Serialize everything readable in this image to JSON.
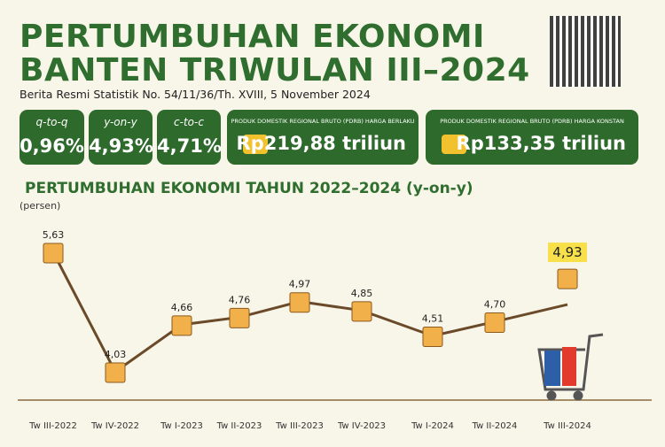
{
  "header": {
    "title_line1": "PERTUMBUHAN EKONOMI",
    "title_line2": "BANTEN TRIWULAN III–2024",
    "subtitle": "Berita Resmi Statistik No. 54/11/36/Th. XVIII, 5 November 2024"
  },
  "stats": [
    {
      "label": "q-to-q",
      "value": "0,96%"
    },
    {
      "label": "y-on-y",
      "value": "4,93%"
    },
    {
      "label": "c-to-c",
      "value": "4,71%"
    }
  ],
  "pdrb": [
    {
      "label": "PRODUK DOMESTIK REGIONAL BRUTO (PDRB) HARGA BERLAKU",
      "value": "Rp219,88 triliun"
    },
    {
      "label": "PRODUK DOMESTIK REGIONAL BRUTO (PDRB) HARGA KONSTAN",
      "value": "Rp133,35 triliun"
    }
  ],
  "chart_data": {
    "type": "line",
    "title": "PERTUMBUHAN EKONOMI TAHUN 2022–2024 (y-on-y)",
    "ylabel": "(persen)",
    "categories": [
      "Tw III-2022",
      "Tw IV-2022",
      "Tw I-2023",
      "Tw II-2023",
      "Tw III-2023",
      "Tw IV-2023",
      "Tw I-2024",
      "Tw II-2024",
      "Tw III-2024"
    ],
    "values": [
      5.63,
      4.03,
      4.66,
      4.76,
      4.97,
      4.85,
      4.51,
      4.7,
      4.93
    ],
    "value_labels": [
      "5,63",
      "4,03",
      "4,66",
      "4,76",
      "4,97",
      "4,85",
      "4,51",
      "4,70",
      "4,93"
    ],
    "color": "#6b4a2a"
  }
}
